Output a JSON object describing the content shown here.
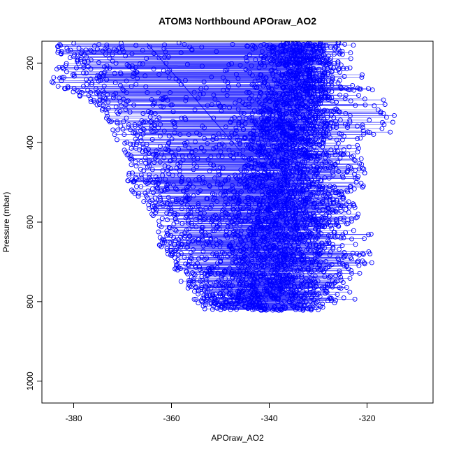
{
  "chart_data": {
    "type": "scatter",
    "title": "ATOM3 Northbound APOraw_AO2",
    "xlabel": "APOraw_AO2",
    "ylabel": "Pressure (mbar)",
    "xlim": [
      -386.5,
      -306.5
    ],
    "ylim": [
      1055,
      145
    ],
    "y_reversed": true,
    "x_ticks": [
      -380,
      -360,
      -340,
      -320
    ],
    "y_ticks": [
      200,
      400,
      600,
      800,
      1000
    ],
    "grid": false,
    "legend": "none",
    "point_style": "open-circle",
    "connected_lines": true,
    "series_color": "#0000ff",
    "envelope_profile": {
      "pressure": [
        150,
        200,
        250,
        300,
        350,
        400,
        450,
        500,
        550,
        600,
        650,
        700,
        750,
        800,
        820
      ],
      "x_min": [
        -384,
        -383,
        -385,
        -376,
        -373,
        -371,
        -368,
        -370,
        -366,
        -363,
        -363,
        -360,
        -358,
        -355,
        -353
      ],
      "x_max": [
        -323,
        -321,
        -320,
        -316,
        -309,
        -322,
        -321,
        -320,
        -323,
        -321,
        -318,
        -316,
        -325,
        -322,
        -330
      ],
      "dense_core_center": [
        -334,
        -334,
        -333,
        -335,
        -336,
        -336,
        -336,
        -337,
        -337,
        -337,
        -338,
        -339,
        -340,
        -341,
        -340
      ],
      "dense_core_halfwidth": [
        6,
        6,
        7,
        7,
        8,
        9,
        9,
        10,
        10,
        10,
        10,
        10,
        10,
        10,
        8
      ]
    },
    "annotated_segments": [
      {
        "x": [
          -365,
          -346
        ],
        "y": [
          150,
          420
        ]
      }
    ]
  }
}
